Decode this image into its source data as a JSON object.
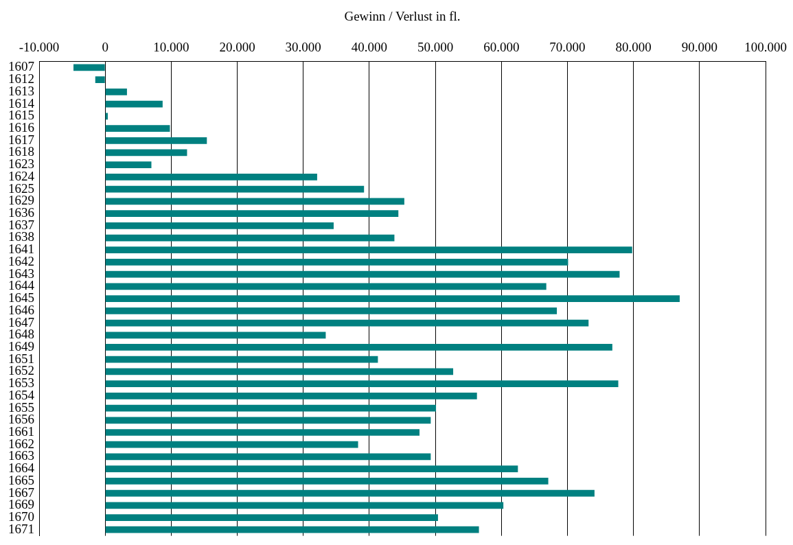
{
  "chart_data": {
    "type": "bar",
    "orientation": "horizontal",
    "xlabel": "Gewinn / Verlust in fl.",
    "categories": [
      "1607",
      "1612",
      "1613",
      "1614",
      "1615",
      "1616",
      "1617",
      "1618",
      "1623",
      "1624",
      "1625",
      "1629",
      "1636",
      "1637",
      "1638",
      "1641",
      "1642",
      "1643",
      "1644",
      "1645",
      "1646",
      "1647",
      "1648",
      "1649",
      "1651",
      "1652",
      "1653",
      "1654",
      "1655",
      "1656",
      "1661",
      "1662",
      "1663",
      "1664",
      "1665",
      "1667",
      "1669",
      "1670",
      "1671"
    ],
    "values": [
      -4800,
      -1500,
      3300,
      8700,
      400,
      9800,
      15400,
      12400,
      7000,
      32100,
      39200,
      45300,
      44400,
      34600,
      43800,
      79800,
      70100,
      77900,
      66800,
      87000,
      68400,
      73200,
      33400,
      76800,
      41300,
      52700,
      77700,
      56300,
      50100,
      49300,
      47600,
      38300,
      49300,
      62500,
      67100,
      74100,
      60300,
      50400,
      56600
    ],
    "color": "#008080",
    "xlim": [
      -10000,
      100000
    ],
    "xticks": [
      {
        "value": -10000,
        "label": "-10.000"
      },
      0,
      {
        "value": 10000,
        "label": "10.000"
      },
      {
        "value": 20000,
        "label": "20.000"
      },
      {
        "value": 30000,
        "label": "30.000"
      },
      {
        "value": 40000,
        "label": "40.000"
      },
      {
        "value": 50000,
        "label": "50.000"
      },
      {
        "value": 60000,
        "label": "60.000"
      },
      {
        "value": 70000,
        "label": "70.000"
      },
      {
        "value": 80000,
        "label": "80.000"
      },
      {
        "value": 90000,
        "label": "90.000"
      },
      {
        "value": 100000,
        "label": "100.000"
      }
    ],
    "grid": "x",
    "legend": false
  }
}
